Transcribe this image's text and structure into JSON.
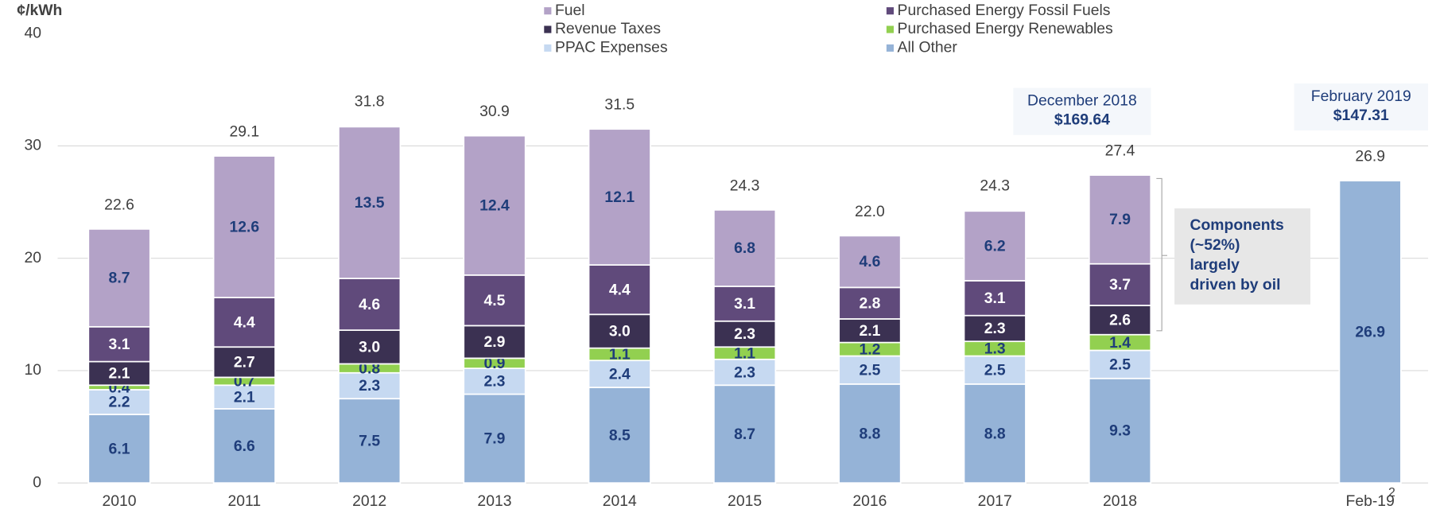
{
  "chart_data": {
    "type": "stacked_bar",
    "y_label": "¢/kWh",
    "categories": [
      "2010",
      "2011",
      "2012",
      "2013",
      "2014",
      "2015",
      "2016",
      "2017",
      "2018",
      null,
      "Feb-19"
    ],
    "series": [
      {
        "name": "All Other",
        "color": "#95b3d7",
        "label_color": "#1f3d7a",
        "values": [
          6.1,
          6.6,
          7.5,
          7.9,
          8.5,
          8.7,
          8.8,
          8.8,
          9.3,
          null,
          26.9
        ],
        "value_labels": [
          "6.1",
          "6.6",
          "7.5",
          "7.9",
          "8.5",
          "8.7",
          "8.8",
          "8.8",
          "9.3",
          null,
          "26.9"
        ]
      },
      {
        "name": "PPAC Expenses",
        "color": "#c6d9f1",
        "label_color": "#1f3d7a",
        "values": [
          2.2,
          2.1,
          2.3,
          2.3,
          2.4,
          2.3,
          2.5,
          2.5,
          2.5,
          null,
          null
        ],
        "value_labels": [
          "2.2",
          "2.1",
          "2.3",
          "2.3",
          "2.4",
          "2.3",
          "2.5",
          "2.5",
          "2.5",
          null,
          null
        ]
      },
      {
        "name": "Purchased Energy Renewables",
        "color": "#92d050",
        "label_color": "#1f3d7a",
        "values": [
          0.4,
          0.7,
          0.8,
          0.9,
          1.1,
          1.1,
          1.2,
          1.3,
          1.4,
          null,
          null
        ],
        "value_labels": [
          "0.4",
          "0.7",
          "0.8",
          "0.9",
          "1.1",
          "1.1",
          "1.2",
          "1.3",
          "1.4",
          null,
          null
        ]
      },
      {
        "name": "Revenue Taxes",
        "color": "#3b3152",
        "label_color": "#ffffff",
        "values": [
          2.1,
          2.7,
          3.0,
          2.9,
          3.0,
          2.3,
          2.1,
          2.3,
          2.6,
          null,
          null
        ],
        "value_labels": [
          "2.1",
          "2.7",
          "3.0",
          "2.9",
          "3.0",
          "2.3",
          "2.1",
          "2.3",
          "2.6",
          null,
          null
        ]
      },
      {
        "name": "Purchased Energy Fossil Fuels",
        "color": "#604a7b",
        "label_color": "#ffffff",
        "values": [
          3.1,
          4.4,
          4.6,
          4.5,
          4.4,
          3.1,
          2.8,
          3.1,
          3.7,
          null,
          null
        ],
        "value_labels": [
          "3.1",
          "4.4",
          "4.6",
          "4.5",
          "4.4",
          "3.1",
          "2.8",
          "3.1",
          "3.7",
          null,
          null
        ]
      },
      {
        "name": "Fuel",
        "color": "#b3a2c7",
        "label_color": "#1f3d7a",
        "values": [
          8.7,
          12.6,
          13.5,
          12.4,
          12.1,
          6.8,
          4.6,
          6.2,
          7.9,
          null,
          null
        ],
        "value_labels": [
          "8.7",
          "12.6",
          "13.5",
          "12.4",
          "12.1",
          "6.8",
          "4.6",
          "6.2",
          "7.9",
          null,
          null
        ]
      }
    ],
    "totals": [
      22.6,
      29.1,
      31.8,
      30.9,
      31.5,
      24.3,
      22.0,
      24.3,
      27.4,
      null,
      26.9
    ],
    "total_labels": [
      "22.6",
      "29.1",
      "31.8",
      "30.9",
      "31.5",
      "24.3",
      "22.0",
      "24.3",
      "27.4",
      null,
      "26.9"
    ],
    "ylim": [
      0,
      40
    ],
    "yticks": [
      0,
      10,
      20,
      30,
      40
    ],
    "grid": true,
    "annotations": [
      {
        "lines": [
          "December 2018",
          "$169.64"
        ]
      },
      {
        "lines": [
          "February 2019",
          "$147.31"
        ]
      }
    ],
    "callout": {
      "lines": [
        "Components",
        "(~52%)",
        "largely",
        "driven by oil"
      ]
    },
    "page_number": "2"
  }
}
